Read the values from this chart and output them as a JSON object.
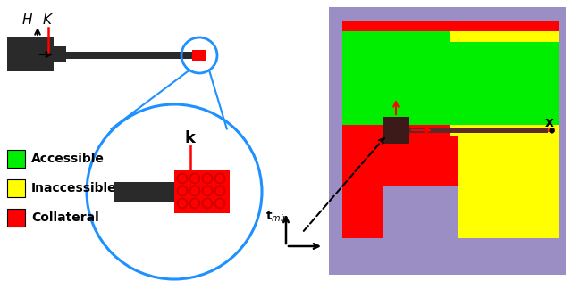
{
  "fig_width": 6.4,
  "fig_height": 3.15,
  "dpi": 100,
  "bg_color": "#ffffff",
  "purple": "#9B8EC4",
  "green": "#00EE00",
  "yellow": "#FFFF00",
  "red": "#FF0000",
  "dark_gray": "#2A2A2A",
  "brown_dark": "#3D1A1A",
  "brown_shaft": "#5C2A2A",
  "blue_circle": "#1E90FF",
  "legend_items": [
    {
      "label": "Accessible",
      "color": "#00EE00"
    },
    {
      "label": "Inaccessible",
      "color": "#FFFF00"
    },
    {
      "label": "Collateral",
      "color": "#FF0000"
    }
  ]
}
